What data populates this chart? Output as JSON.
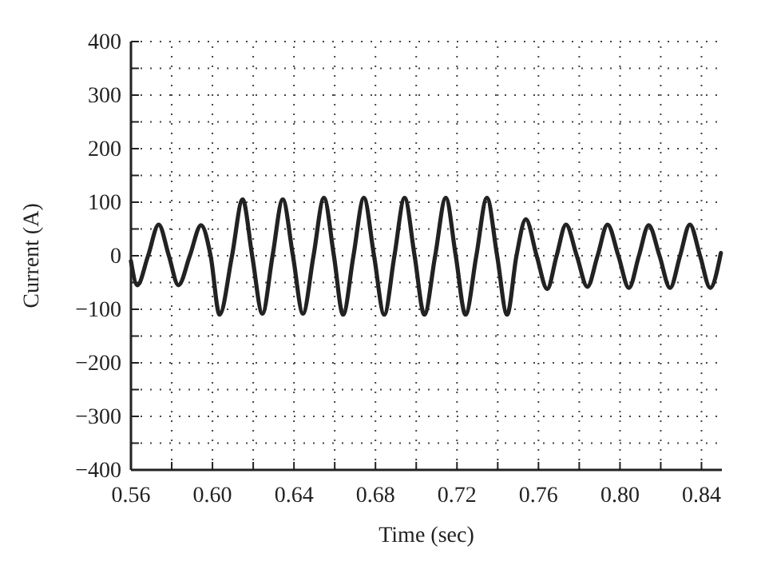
{
  "chart_data": {
    "type": "line",
    "xlabel": "Time (sec)",
    "ylabel": "Current (A)",
    "xlim": [
      0.56,
      0.85
    ],
    "ylim": [
      -400,
      400
    ],
    "xticks": [
      {
        "value": 0.56,
        "label": "0.56"
      },
      {
        "value": 0.58,
        "label": null
      },
      {
        "value": 0.6,
        "label": "0.60"
      },
      {
        "value": 0.62,
        "label": null
      },
      {
        "value": 0.64,
        "label": "0.64"
      },
      {
        "value": 0.66,
        "label": null
      },
      {
        "value": 0.68,
        "label": "0.68"
      },
      {
        "value": 0.7,
        "label": null
      },
      {
        "value": 0.72,
        "label": "0.72"
      },
      {
        "value": 0.74,
        "label": null
      },
      {
        "value": 0.76,
        "label": "0.76"
      },
      {
        "value": 0.78,
        "label": null
      },
      {
        "value": 0.8,
        "label": "0.80"
      },
      {
        "value": 0.82,
        "label": null
      },
      {
        "value": 0.84,
        "label": "0.84"
      }
    ],
    "yticks": [
      {
        "value": -400,
        "label": "−400"
      },
      {
        "value": -350,
        "label": null
      },
      {
        "value": -300,
        "label": "−300"
      },
      {
        "value": -250,
        "label": null
      },
      {
        "value": -200,
        "label": "−200"
      },
      {
        "value": -150,
        "label": null
      },
      {
        "value": -100,
        "label": "−100"
      },
      {
        "value": -50,
        "label": null
      },
      0,
      {
        "value": 50,
        "label": null
      },
      100,
      {
        "value": 150,
        "label": null
      },
      200,
      {
        "value": 250,
        "label": null
      },
      300,
      {
        "value": 350,
        "label": null
      },
      400
    ],
    "grid": true,
    "marker": "none",
    "line_style": "solid",
    "series": [
      {
        "color": "#222222",
        "x": [
          0.56,
          0.5631,
          0.5684,
          0.5736,
          0.5786,
          0.5833,
          0.5889,
          0.5944,
          0.5991,
          0.6035,
          0.6096,
          0.6148,
          0.6195,
          0.6245,
          0.6295,
          0.6345,
          0.6395,
          0.6444,
          0.6496,
          0.6547,
          0.6596,
          0.6641,
          0.6692,
          0.6743,
          0.6793,
          0.6843,
          0.6893,
          0.6943,
          0.6992,
          0.704,
          0.7093,
          0.7145,
          0.7194,
          0.7242,
          0.7295,
          0.7347,
          0.7397,
          0.7446,
          0.7492,
          0.7538,
          0.7591,
          0.7643,
          0.7689,
          0.7735,
          0.7788,
          0.784,
          0.789,
          0.7939,
          0.7992,
          0.8044,
          0.8093,
          0.8141,
          0.8194,
          0.8246,
          0.8295,
          0.8343,
          0.8393,
          0.8443,
          0.8495
        ],
        "values": [
          -10,
          -55,
          0,
          58,
          0,
          -55,
          0,
          57,
          0,
          -110,
          0,
          105,
          0,
          -108,
          0,
          105,
          0,
          -108,
          0,
          108,
          0,
          -110,
          0,
          108,
          0,
          -110,
          0,
          108,
          0,
          -110,
          0,
          108,
          0,
          -110,
          0,
          108,
          0,
          -110,
          0,
          68,
          0,
          -62,
          0,
          58,
          0,
          -58,
          0,
          58,
          0,
          -60,
          0,
          57,
          0,
          -60,
          0,
          58,
          0,
          -60,
          5
        ]
      }
    ]
  }
}
